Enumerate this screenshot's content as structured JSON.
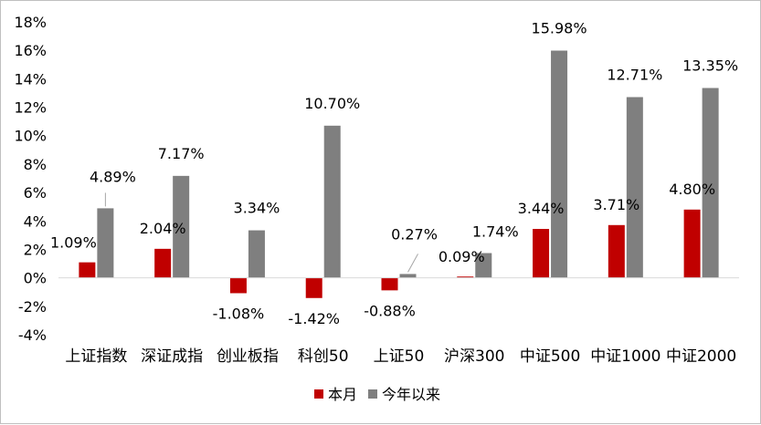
{
  "chart_data": {
    "type": "bar",
    "categories": [
      "上证指数",
      "深证成指",
      "创业板指",
      "科创50",
      "上证50",
      "沪深300",
      "中证500",
      "中证1000",
      "中证2000"
    ],
    "series": [
      {
        "name": "本月",
        "color": "#c00000",
        "values": [
          1.09,
          2.04,
          -1.08,
          -1.42,
          -0.88,
          0.09,
          3.44,
          3.71,
          4.8
        ],
        "labels": [
          "1.09%",
          "2.04%",
          "-1.08%",
          "-1.42%",
          "-0.88%",
          "0.09%",
          "3.44%",
          "3.71%",
          "4.80%"
        ]
      },
      {
        "name": "今年以来",
        "color": "#7f7f7f",
        "values": [
          4.89,
          7.17,
          3.34,
          10.7,
          0.27,
          1.74,
          15.98,
          12.71,
          13.35
        ],
        "labels": [
          "4.89%",
          "7.17%",
          "3.34%",
          "10.70%",
          "0.27%",
          "1.74%",
          "15.98%",
          "12.71%",
          "13.35%"
        ]
      }
    ],
    "ylim": [
      -4,
      18
    ],
    "yticks": [
      "-4%",
      "-2%",
      "0%",
      "2%",
      "4%",
      "6%",
      "8%",
      "10%",
      "12%",
      "14%",
      "16%",
      "18%"
    ],
    "grid": false,
    "legend": "bottom-center",
    "xlabel": "",
    "ylabel": "",
    "title": ""
  }
}
